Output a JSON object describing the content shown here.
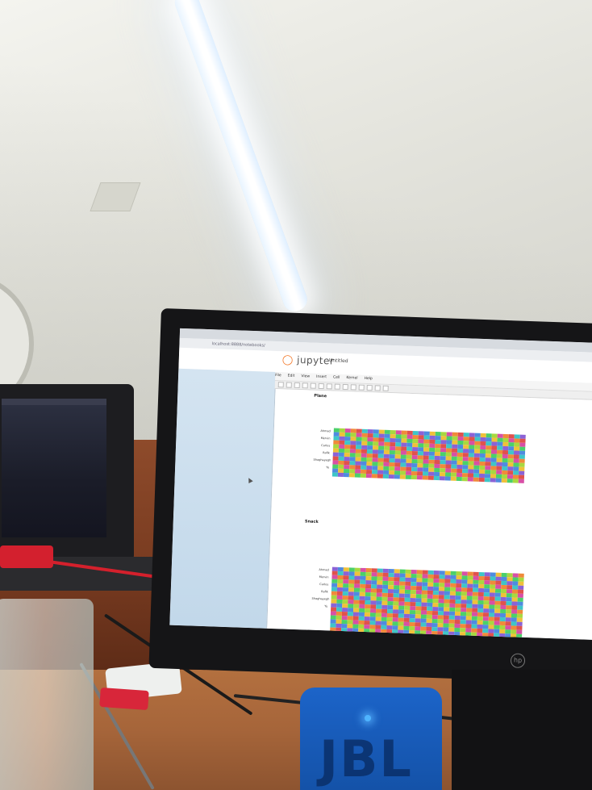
{
  "scene": {
    "description_type": "photo"
  },
  "browser": {
    "address_text": "localhost:8888/notebooks/",
    "app_name": "jupyter",
    "notebook_title": "Untitled",
    "menu": [
      "File",
      "Edit",
      "View",
      "Insert",
      "Cell",
      "Kernel",
      "Help"
    ]
  },
  "notebook": {
    "section_1_title": "Plane",
    "section_2_title": "Snack",
    "row_labels": [
      "Ahmad",
      "Mervin",
      "Carlos",
      "Rafik",
      "Shaghayegh",
      "Yu"
    ]
  },
  "devices": {
    "monitor_brand": "hp",
    "speaker_brand": "JBL"
  },
  "colors": {
    "heat_palette": [
      "#e0524c",
      "#d84fa6",
      "#8b62d6",
      "#4f8be0",
      "#3ec6c8",
      "#4bd06a",
      "#a8d840",
      "#f0c13a",
      "#f08a3a"
    ],
    "ceiling": "#e8e8e2",
    "wood": "#7a3c21",
    "speaker": "#1c64c9"
  }
}
